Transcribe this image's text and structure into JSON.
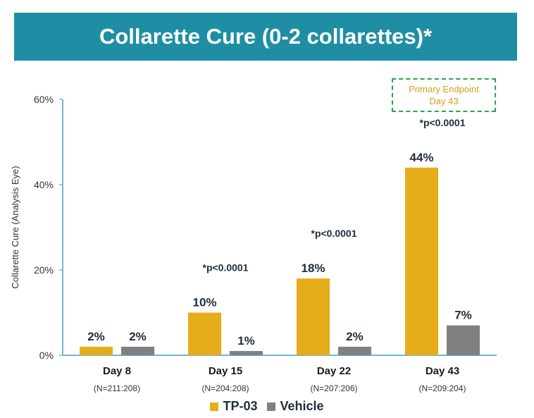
{
  "title": "Collarette Cure (0-2 collarettes)*",
  "endpoint_box": {
    "line1": "Primary Endpoint",
    "line2": "Day 43"
  },
  "colors": {
    "title_bg": "#1f8ea5",
    "tp03": "#e6ad1a",
    "vehicle": "#808080",
    "axis": "#6fb7d6"
  },
  "chart_data": {
    "type": "bar",
    "title": "Collarette Cure (0-2 collarettes)*",
    "ylabel": "Collarette Cure (Analysis Eye)",
    "ylim": [
      0,
      60
    ],
    "yticks": [
      "0%",
      "20%",
      "40%",
      "60%"
    ],
    "categories": [
      "Day 8",
      "Day 15",
      "Day 22",
      "Day 43"
    ],
    "n_labels": [
      "(N=211:208)",
      "(N=204:208)",
      "(N=207:206)",
      "(N=209:204)"
    ],
    "p_values": [
      "",
      "*p<0.0001",
      "*p<0.0001",
      "*p<0.0001"
    ],
    "series": [
      {
        "name": "TP-03",
        "values": [
          2,
          10,
          18,
          44
        ],
        "labels": [
          "2%",
          "10%",
          "18%",
          "44%"
        ],
        "color": "#e6ad1a"
      },
      {
        "name": "Vehicle",
        "values": [
          2,
          1,
          2,
          7
        ],
        "labels": [
          "2%",
          "1%",
          "2%",
          "7%"
        ],
        "color": "#808080"
      }
    ],
    "legend": "bottom"
  }
}
